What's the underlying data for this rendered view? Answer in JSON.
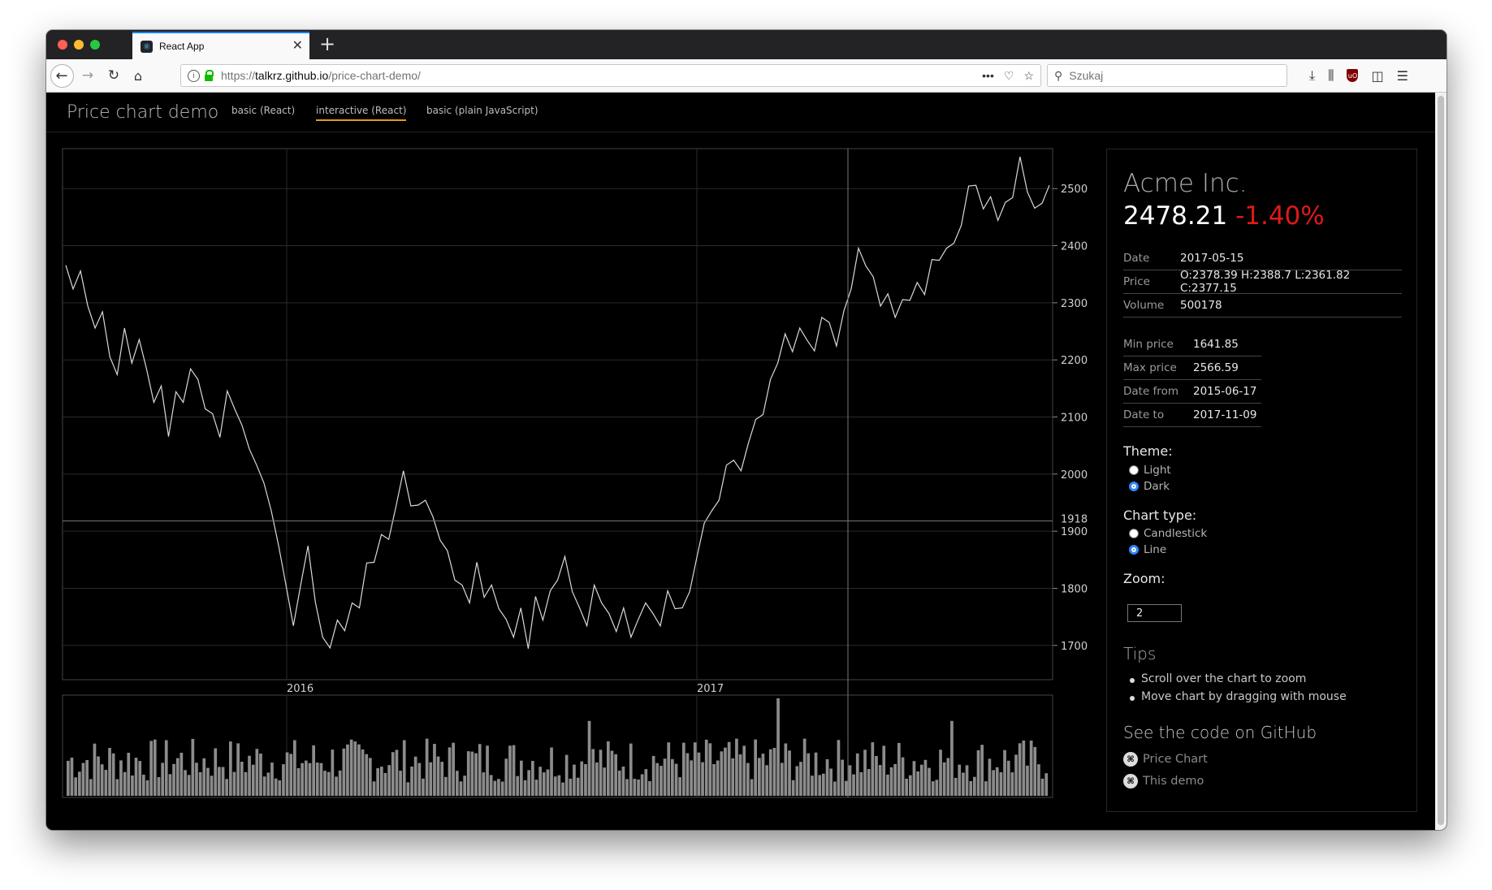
{
  "browser": {
    "tab_title": "React App",
    "url_scheme": "https://",
    "url_host": "talkrz.github.io",
    "url_path": "/price-chart-demo/",
    "search_placeholder": "Szukaj"
  },
  "app": {
    "brand": "Price chart demo",
    "nav": [
      "basic (React)",
      "interactive (React)",
      "basic (plain JavaScript)"
    ],
    "active_nav": "interactive (React)"
  },
  "info": {
    "company": "Acme Inc.",
    "price": "2478.21",
    "change": "-1.40%",
    "change_color": "#e11919",
    "details": [
      {
        "label": "Date",
        "value": "2017-05-15"
      },
      {
        "label": "Price",
        "value": "O:2378.39 H:2388.7 L:2361.82 C:2377.15"
      },
      {
        "label": "Volume",
        "value": "500178"
      }
    ],
    "stats": [
      {
        "label": "Min price",
        "value": "1641.85"
      },
      {
        "label": "Max price",
        "value": "2566.59"
      },
      {
        "label": "Date from",
        "value": "2015-06-17"
      },
      {
        "label": "Date to",
        "value": "2017-11-09"
      }
    ],
    "theme_label": "Theme:",
    "theme_options": [
      "Light",
      "Dark"
    ],
    "theme_selected": "Dark",
    "chart_type_label": "Chart type:",
    "chart_type_options": [
      "Candlestick",
      "Line"
    ],
    "chart_type_selected": "Line",
    "zoom_label": "Zoom:",
    "zoom_value": "2",
    "tips_title": "Tips",
    "tips": [
      "Scroll over the chart to zoom",
      "Move chart by dragging with mouse"
    ],
    "github_title": "See the code on GitHub",
    "github_links": [
      "Price Chart",
      "This demo"
    ]
  },
  "chart_data": {
    "type": "line",
    "title": "",
    "ylim": [
      1640,
      2570
    ],
    "y_ticks": [
      1700,
      1800,
      1900,
      2000,
      2100,
      2200,
      2300,
      2400,
      2500
    ],
    "crosshair_value": 1918,
    "x_tick_labels": [
      "2016",
      "2017"
    ],
    "series": [
      {
        "values": [
          2360,
          2330,
          2350,
          2300,
          2250,
          2290,
          2200,
          2180,
          2250,
          2200,
          2230,
          2190,
          2120,
          2160,
          2060,
          2150,
          2120,
          2190,
          2160,
          2120,
          2100,
          2070,
          2140,
          2120,
          2080,
          2050,
          2010,
          1990,
          1930,
          1880,
          1800,
          1740,
          1800,
          1880,
          1770,
          1720,
          1690,
          1750,
          1720,
          1780,
          1760,
          1850,
          1840,
          1900,
          1880,
          1950,
          2000,
          1950,
          1940,
          1960,
          1920,
          1890,
          1860,
          1820,
          1800,
          1780,
          1840,
          1790,
          1800,
          1770,
          1740,
          1720,
          1760,
          1700,
          1780,
          1750,
          1790,
          1820,
          1850,
          1800,
          1760,
          1740,
          1800,
          1780,
          1750,
          1730,
          1760,
          1720,
          1740,
          1780,
          1750,
          1740,
          1790,
          1770,
          1760,
          1800,
          1850,
          1920,
          1930,
          1960,
          2010,
          2030,
          2000,
          2060,
          2090,
          2110,
          2160,
          2200,
          2240,
          2220,
          2250,
          2240,
          2210,
          2280,
          2260,
          2230,
          2280,
          2330,
          2390,
          2370,
          2340,
          2300,
          2310,
          2280,
          2300,
          2310,
          2330,
          2320,
          2370,
          2380,
          2390,
          2410,
          2430,
          2510,
          2500,
          2470,
          2480,
          2450,
          2470,
          2490,
          2550,
          2500,
          2460,
          2480,
          2500
        ],
        "color": "#d9d9d9"
      }
    ],
    "volume": {
      "type": "bar",
      "count": 260,
      "typical_range": [
        150000,
        650000
      ],
      "peak": 1100000
    }
  }
}
